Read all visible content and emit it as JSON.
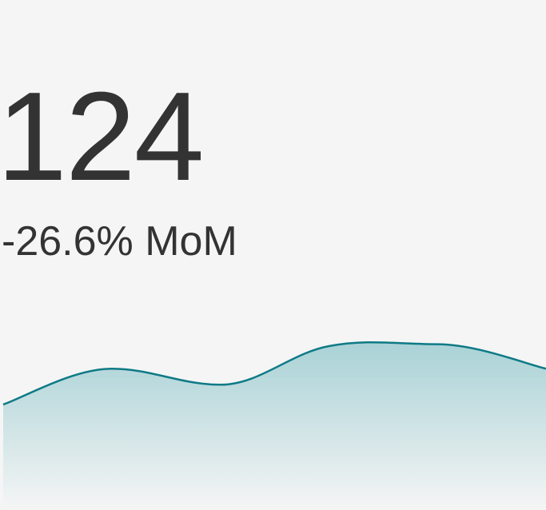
{
  "kpi": {
    "value": "124",
    "delta": "-26.6% MoM"
  },
  "colors": {
    "background": "#f5f5f5",
    "text": "#333333",
    "line": "#0e7a86",
    "fill_top": "#a9d2d6",
    "fill_bottom": "#f5f5f5"
  },
  "chart_data": {
    "type": "area",
    "title": "",
    "xlabel": "",
    "ylabel": "",
    "grid": false,
    "legend": "none",
    "x": [
      0,
      1,
      2,
      3,
      4,
      5
    ],
    "values": [
      112,
      150,
      133,
      174,
      176,
      150
    ],
    "ylim": [
      0,
      185
    ]
  }
}
